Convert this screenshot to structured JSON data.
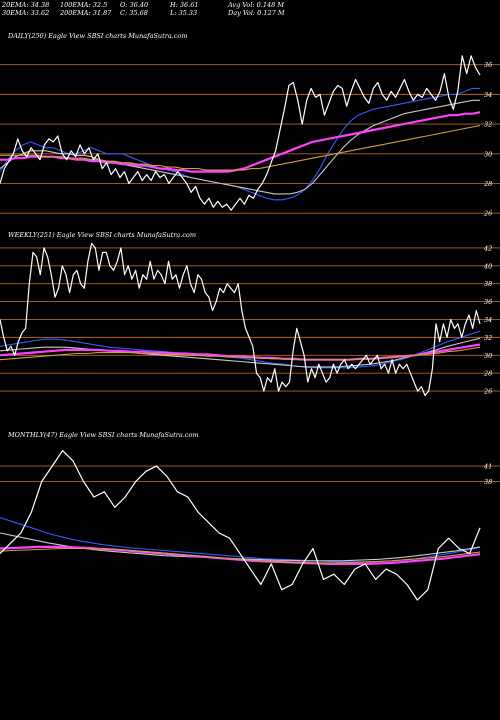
{
  "header": {
    "row1": [
      "20EMA: 34.38",
      "100EMA: 32.5",
      "O: 36.40",
      "H: 36.61",
      "Avg Vol: 0.148 M"
    ],
    "row2": [
      "30EMA: 33.62",
      "200EMA: 31.87",
      "C: 35.68",
      "L: 35.33",
      "Day Vol: 0.127 M"
    ]
  },
  "colors": {
    "background": "#000000",
    "price": "#ffffff",
    "gridline": "#b5651d",
    "ema_short": "#2f5bff",
    "ema_mid": "#c8c8c8",
    "ema_long": "#ff40ff",
    "ema_gold": "#c8a040"
  },
  "chart_data": [
    {
      "type": "line",
      "title": "DAILY(250) Eagle   View  SBSI charts MunafaSutra.com",
      "y_ticks": [
        "36",
        "34",
        "32",
        "30",
        "28",
        "26"
      ],
      "ylim": [
        25,
        38
      ],
      "series": [
        {
          "values": [
            28,
            29,
            29.5,
            30,
            31,
            30.2,
            29.8,
            30.4,
            30,
            29.6,
            30.6,
            31,
            30.8,
            31.2,
            30,
            29.6,
            30.2,
            29.8,
            30.6,
            30,
            30.4,
            29.6,
            30,
            29,
            29.4,
            28.6,
            29,
            28.4,
            28.8,
            28,
            28.4,
            28.8,
            28.2,
            28.6,
            28.2,
            28.8,
            28.4,
            28.6,
            28,
            28.4,
            28.8,
            28.4,
            28,
            27.4,
            27.8,
            27,
            26.6,
            27,
            26.4,
            26.8,
            26.4,
            26.6,
            26.2,
            26.6,
            27,
            26.6,
            27.2,
            27,
            27.6,
            28,
            28.6,
            29.4,
            30.2,
            31.6,
            33,
            34.6,
            34.8,
            33.6,
            32,
            33.6,
            34.4,
            33.8,
            34,
            32.6,
            33.4,
            34.2,
            34.6,
            34.4,
            33.2,
            34.2,
            35,
            34.4,
            33.8,
            33.4,
            34.4,
            34.8,
            34,
            33.6,
            34.2,
            33.8,
            34.4,
            35,
            34.2,
            33.6,
            34,
            33.8,
            34.4,
            34,
            33.6,
            34.2,
            35.4,
            33.8,
            33,
            34.2,
            36.6,
            35.4,
            36.6,
            35.8,
            35.3
          ]
        }
      ],
      "ema_series": [
        {
          "values": [
            28.8,
            29.6,
            30.2,
            30.6,
            30.8,
            30.6,
            30.4,
            30.4,
            30.2,
            30,
            30,
            30.2,
            30.4,
            30.2,
            30,
            30,
            30,
            29.8,
            29.6,
            29.4,
            29.2,
            29,
            28.9,
            28.8,
            28.6,
            28.4,
            28.3,
            28.2,
            28.1,
            28,
            27.9,
            27.8,
            27.6,
            27.4,
            27.2,
            27,
            26.9,
            26.9,
            27,
            27.2,
            27.6,
            28.2,
            29,
            30,
            30.8,
            31.6,
            32.2,
            32.6,
            32.8,
            33,
            33.1,
            33.2,
            33.3,
            33.4,
            33.5,
            33.6,
            33.7,
            33.8,
            33.9,
            34,
            34,
            34.2,
            34.4,
            34.4
          ]
        },
        {
          "values": [
            29,
            29.4,
            29.8,
            30,
            30.2,
            30.2,
            30.2,
            30.1,
            30,
            30,
            29.9,
            29.9,
            29.8,
            29.6,
            29.5,
            29.4,
            29.3,
            29.2,
            29.1,
            29,
            28.9,
            28.8,
            28.7,
            28.6,
            28.5,
            28.4,
            28.3,
            28.2,
            28.1,
            28,
            27.9,
            27.8,
            27.7,
            27.6,
            27.5,
            27.4,
            27.3,
            27.3,
            27.3,
            27.4,
            27.6,
            28,
            28.6,
            29.2,
            29.8,
            30.4,
            30.9,
            31.3,
            31.6,
            31.9,
            32.1,
            32.3,
            32.5,
            32.7,
            32.8,
            32.9,
            33,
            33.1,
            33.2,
            33.3,
            33.4,
            33.5,
            33.6,
            33.6
          ]
        },
        {
          "values": [
            29.6,
            29.6,
            29.7,
            29.7,
            29.8,
            29.8,
            29.8,
            29.8,
            29.7,
            29.7,
            29.6,
            29.6,
            29.5,
            29.5,
            29.4,
            29.4,
            29.3,
            29.3,
            29.2,
            29.2,
            29.1,
            29,
            29,
            28.9,
            28.9,
            28.8,
            28.8,
            28.8,
            28.8,
            28.8,
            28.8,
            28.9,
            29,
            29.2,
            29.4,
            29.6,
            29.8,
            30,
            30.2,
            30.4,
            30.6,
            30.8,
            30.9,
            31,
            31.1,
            31.2,
            31.3,
            31.4,
            31.5,
            31.6,
            31.7,
            31.8,
            31.9,
            32,
            32.1,
            32.2,
            32.3,
            32.4,
            32.5,
            32.6,
            32.6,
            32.7,
            32.7,
            32.8
          ]
        },
        {
          "values": [
            29.9,
            29.9,
            29.9,
            29.9,
            29.9,
            29.9,
            29.8,
            29.8,
            29.8,
            29.7,
            29.7,
            29.7,
            29.6,
            29.6,
            29.5,
            29.5,
            29.4,
            29.4,
            29.3,
            29.3,
            29.2,
            29.2,
            29.1,
            29.1,
            29,
            29,
            29,
            28.9,
            28.9,
            28.9,
            28.9,
            28.9,
            28.9,
            29,
            29,
            29.1,
            29.2,
            29.3,
            29.4,
            29.5,
            29.6,
            29.7,
            29.8,
            29.9,
            30,
            30.1,
            30.2,
            30.3,
            30.4,
            30.5,
            30.6,
            30.7,
            30.8,
            30.9,
            31,
            31.1,
            31.2,
            31.3,
            31.4,
            31.5,
            31.6,
            31.7,
            31.8,
            31.9
          ]
        }
      ]
    },
    {
      "type": "line",
      "title": "WEEKLY(251) Eagle   View  SBSI charts MunafaSutra.com",
      "y_ticks": [
        "42",
        "40",
        "38",
        "36",
        "34",
        "32",
        "30",
        "28",
        "26"
      ],
      "ylim": [
        25,
        44
      ],
      "series": [
        {
          "values": [
            34,
            32,
            30.5,
            31,
            30,
            31.5,
            32.5,
            33,
            38,
            41.5,
            41,
            39,
            42,
            41,
            39,
            36.5,
            37.5,
            40,
            39,
            37,
            39,
            39.5,
            38,
            37.5,
            40.5,
            42.5,
            42,
            39.5,
            41.5,
            41.5,
            40,
            39.5,
            40.5,
            42,
            39,
            40,
            38.5,
            39.5,
            37.5,
            39,
            38.5,
            40.5,
            38.5,
            39.5,
            39,
            38,
            40.5,
            38.5,
            39,
            37.5,
            39,
            40,
            38,
            37,
            39,
            38.5,
            37,
            36.5,
            35,
            36,
            37.5,
            37,
            38,
            37.5,
            37,
            38,
            35,
            33,
            32,
            31,
            28,
            27.5,
            26,
            27.5,
            27,
            28.5,
            26,
            27,
            26.5,
            27,
            30.5,
            33,
            31.5,
            30,
            27,
            28.5,
            27.5,
            29,
            28,
            27,
            27.5,
            29,
            28,
            29,
            29.5,
            28.5,
            29,
            28.5,
            29,
            29.5,
            30,
            29,
            29.5,
            30,
            28.5,
            29,
            28,
            29.5,
            28,
            29,
            28.5,
            29,
            28,
            27,
            26,
            26.5,
            25.5,
            26,
            28.5,
            33.5,
            31.5,
            33.5,
            32,
            34,
            33,
            33.5,
            32,
            33.5,
            34.5,
            33,
            35,
            33.5
          ]
        }
      ],
      "ema_series": [
        {
          "values": [
            31,
            31.2,
            31.4,
            31.6,
            31.8,
            31.8,
            31.7,
            31.5,
            31.3,
            31.1,
            30.9,
            30.8,
            30.7,
            30.6,
            30.5,
            30.4,
            30.3,
            30.2,
            30.1,
            30,
            29.9,
            29.8,
            29.7,
            29.5,
            29.3,
            29.1,
            29,
            28.8,
            28.7,
            28.6,
            28.6,
            28.6,
            28.6,
            28.7,
            28.8,
            29,
            29.3,
            29.6,
            30,
            30.5,
            31,
            31.5,
            31.9,
            32.3,
            32.7
          ]
        },
        {
          "values": [
            30.5,
            30.6,
            30.7,
            30.8,
            30.9,
            30.9,
            30.9,
            30.8,
            30.7,
            30.6,
            30.5,
            30.4,
            30.3,
            30.2,
            30.1,
            30,
            29.9,
            29.8,
            29.7,
            29.6,
            29.5,
            29.4,
            29.3,
            29.2,
            29.1,
            29,
            28.9,
            28.8,
            28.7,
            28.7,
            28.7,
            28.7,
            28.8,
            28.9,
            29,
            29.2,
            29.4,
            29.7,
            30,
            30.3,
            30.6,
            31,
            31.3,
            31.6,
            31.9
          ]
        },
        {
          "values": [
            30,
            30.1,
            30.2,
            30.3,
            30.4,
            30.5,
            30.6,
            30.6,
            30.6,
            30.6,
            30.5,
            30.5,
            30.4,
            30.4,
            30.3,
            30.3,
            30.2,
            30.2,
            30.1,
            30.1,
            30,
            29.9,
            29.9,
            29.8,
            29.7,
            29.7,
            29.6,
            29.6,
            29.5,
            29.5,
            29.5,
            29.5,
            29.5,
            29.6,
            29.6,
            29.7,
            29.8,
            29.9,
            30,
            30.2,
            30.4,
            30.6,
            30.8,
            31,
            31.2
          ]
        },
        {
          "values": [
            29.5,
            29.6,
            29.7,
            29.8,
            29.9,
            30,
            30.1,
            30.2,
            30.2,
            30.3,
            30.3,
            30.3,
            30.3,
            30.2,
            30.2,
            30.1,
            30.1,
            30,
            30,
            29.9,
            29.9,
            29.8,
            29.8,
            29.7,
            29.7,
            29.6,
            29.6,
            29.5,
            29.5,
            29.5,
            29.5,
            29.5,
            29.5,
            29.6,
            29.6,
            29.7,
            29.8,
            29.9,
            30,
            30.1,
            30.2,
            30.4,
            30.5,
            30.7,
            30.9
          ]
        }
      ]
    },
    {
      "type": "line",
      "title": "MONTHLY(47) Eagle   View  SBSI charts MunafaSutra.com",
      "y_ticks": [
        "41",
        "38"
      ],
      "ylim": [
        15,
        48
      ],
      "series": [
        {
          "values": [
            24,
            26,
            28,
            32,
            38,
            41,
            44,
            42,
            38,
            35,
            36,
            33,
            35,
            38,
            40,
            41,
            39,
            36,
            35,
            32,
            30,
            28,
            27,
            24,
            21,
            18,
            22,
            17,
            18,
            22,
            25,
            19,
            20,
            18,
            21,
            22,
            19,
            21,
            20,
            18,
            15,
            17,
            25,
            27,
            25,
            24,
            29
          ]
        }
      ],
      "ema_series": [
        {
          "values": [
            31,
            30.2,
            29.4,
            28.6,
            27.8,
            27.2,
            26.6,
            26.2,
            25.8,
            25.5,
            25.2,
            25,
            24.8,
            24.6,
            24.4,
            24.2,
            24,
            23.8,
            23.6,
            23.4,
            23.2,
            23,
            22.9,
            22.8,
            22.7,
            22.6,
            22.5,
            22.4,
            22.4,
            22.4,
            22.5,
            22.6,
            22.8,
            23,
            23.4,
            23.8,
            24.2,
            24.7,
            25.2
          ]
        },
        {
          "values": [
            28,
            27.5,
            27,
            26.5,
            26,
            25.6,
            25.2,
            24.9,
            24.6,
            24.4,
            24.2,
            24,
            23.8,
            23.6,
            23.5,
            23.4,
            23.3,
            23.2,
            23.1,
            23,
            22.9,
            22.8,
            22.7,
            22.7,
            22.6,
            22.6,
            22.6,
            22.6,
            22.7,
            22.8,
            22.9,
            23.1,
            23.3,
            23.6,
            23.9,
            24.2,
            24.5,
            24.9,
            25.3
          ]
        },
        {
          "values": [
            25,
            25.1,
            25.2,
            25.3,
            25.3,
            25.3,
            25.2,
            25.1,
            24.9,
            24.8,
            24.6,
            24.4,
            24.2,
            24,
            23.8,
            23.6,
            23.4,
            23.2,
            23,
            22.8,
            22.6,
            22.5,
            22.4,
            22.3,
            22.2,
            22.1,
            22,
            22,
            22,
            22,
            22.1,
            22.2,
            22.4,
            22.6,
            22.8,
            23,
            23.3,
            23.6,
            23.9
          ]
        },
        {
          "values": [
            24.5,
            24.6,
            24.7,
            24.8,
            24.9,
            25,
            25,
            25,
            24.9,
            24.8,
            24.7,
            24.5,
            24.3,
            24.1,
            23.9,
            23.7,
            23.5,
            23.3,
            23.1,
            22.9,
            22.7,
            22.5,
            22.4,
            22.3,
            22.2,
            22.2,
            22.2,
            22.2,
            22.3,
            22.4,
            22.5,
            22.6,
            22.8,
            23,
            23.2,
            23.4,
            23.7,
            24,
            24.3
          ]
        }
      ]
    }
  ]
}
